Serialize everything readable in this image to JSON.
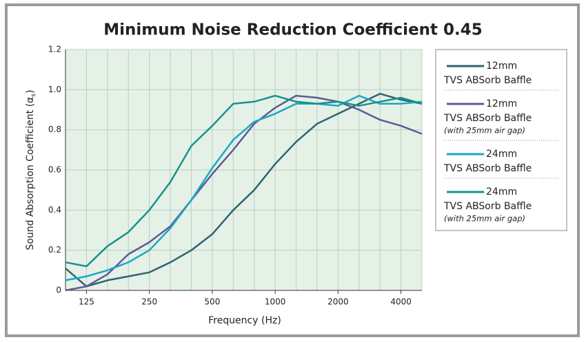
{
  "chart_data": {
    "type": "line",
    "title": "Minimum Noise Reduction Coefficient 0.45",
    "xlabel": "Frequency (Hz)",
    "ylabel": "Sound Absorption Coefficient (α",
    "ylabel_sub": "s",
    "ylabel_end": ")",
    "categories": [
      null,
      "125",
      null,
      null,
      "250",
      null,
      null,
      "500",
      null,
      null,
      "1000",
      null,
      null,
      "2000",
      null,
      null,
      "4000",
      null
    ],
    "ylim": [
      0,
      1.2
    ],
    "yticks": [
      0,
      0.2,
      0.4,
      0.6,
      0.8,
      {
        "value": 1,
        "label": "1.0"
      },
      1.2
    ],
    "grid": true,
    "legend": "right",
    "series": [
      {
        "name": "12mm",
        "subtitle": "TVS ABSorb Baffle",
        "color": "#2e6272",
        "values": [
          0.11,
          0.02,
          0.05,
          0.07,
          0.09,
          0.14,
          0.2,
          0.28,
          0.4,
          0.5,
          0.63,
          0.74,
          0.83,
          0.88,
          0.93,
          0.98,
          0.95,
          0.93
        ]
      },
      {
        "name": "12mm",
        "subtitle": "TVS ABSorb Baffle",
        "note": "(with 25mm air gap)",
        "color": "#5b5a96",
        "values": [
          0.0,
          0.02,
          0.08,
          0.18,
          0.24,
          0.32,
          0.45,
          0.58,
          0.7,
          0.83,
          0.91,
          0.97,
          0.96,
          0.94,
          0.9,
          0.85,
          0.82,
          0.78
        ]
      },
      {
        "name": "24mm",
        "subtitle": "TVS ABSorb Baffle",
        "color": "#1ba6c9",
        "values": [
          0.05,
          0.07,
          0.1,
          0.14,
          0.2,
          0.31,
          0.45,
          0.61,
          0.75,
          0.84,
          0.88,
          0.93,
          0.93,
          0.92,
          0.97,
          0.93,
          0.93,
          0.94
        ]
      },
      {
        "name": "24mm",
        "subtitle": "TVS ABSorb Baffle",
        "note": "(with 25mm air gap)",
        "color": "#14928a",
        "values": [
          0.14,
          0.12,
          0.22,
          0.29,
          0.4,
          0.54,
          0.72,
          0.82,
          0.93,
          0.94,
          0.97,
          0.94,
          0.93,
          0.94,
          0.92,
          0.94,
          0.96,
          0.93
        ]
      }
    ]
  }
}
